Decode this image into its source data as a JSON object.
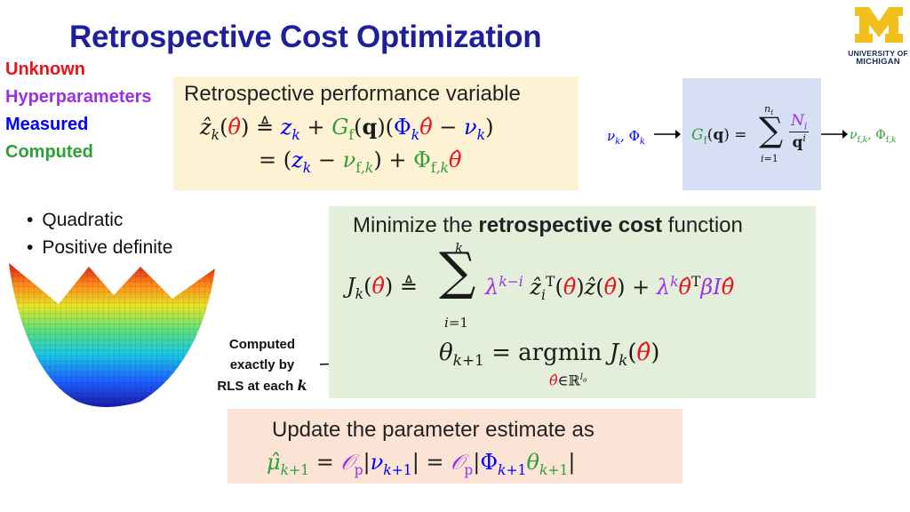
{
  "title": "Retrospective Cost Optimization",
  "legend": {
    "unknown": "Unknown",
    "hyperparameters": "Hyperparameters",
    "measured": "Measured",
    "computed": "Computed"
  },
  "colors": {
    "unknown": "#e8141d",
    "hyperparameters": "#9b30e8",
    "measured": "#0000ff",
    "computed": "#2e9f36",
    "title": "#1f1f9e"
  },
  "performance_box": {
    "heading": "Retrospective performance variable"
  },
  "filter_box": {
    "input_label": "ν",
    "output_label": "ν",
    "sum_upper": "n"
  },
  "bullets": [
    "Quadratic",
    "Positive definite"
  ],
  "rls_note": {
    "line1": "Computed",
    "line2": "exactly by",
    "line3": "RLS at each"
  },
  "cost_box": {
    "intro": "Minimize the ",
    "bold": "retrospective cost",
    "outro": " function",
    "argmin": "argmin"
  },
  "update_box": {
    "heading": "Update the parameter estimate as"
  },
  "logo": {
    "letter": "M",
    "line1": "UNIVERSITY OF",
    "line2": "MICHIGAN"
  }
}
